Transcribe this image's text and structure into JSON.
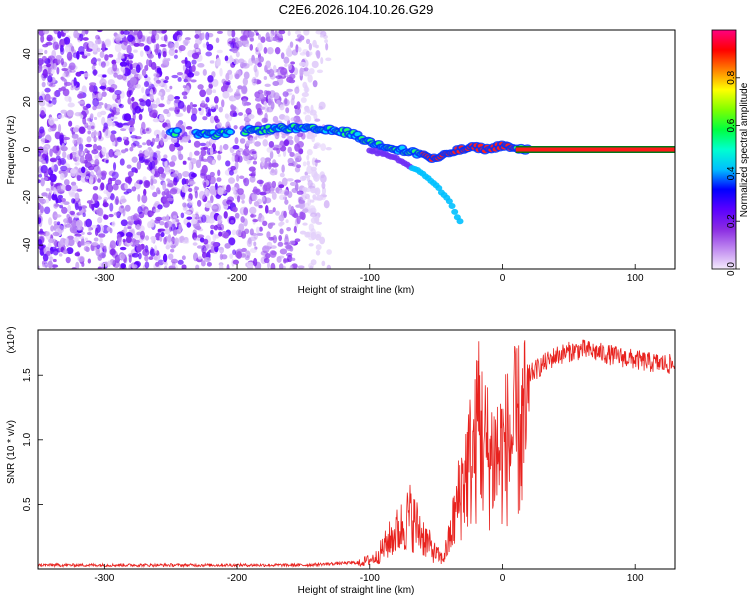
{
  "title": "C2E6.2026.104.10.26.G29",
  "chart_data": [
    {
      "type": "heatmap",
      "name": "spectrogram",
      "xlabel": "Height of straight line (km)",
      "ylabel": "Frequency (Hz)",
      "xlim": [
        -350,
        130
      ],
      "ylim": [
        -50,
        50
      ],
      "xticks": [
        -300,
        -200,
        -100,
        0,
        100
      ],
      "yticks": [
        -40,
        -20,
        0,
        20,
        40
      ],
      "colorbar": {
        "label": "Normalized spectral amplitude",
        "range": [
          0,
          1
        ],
        "ticks": [
          "0.0",
          "0.2",
          "0.4",
          "0.6",
          "0.8"
        ],
        "tick_values": [
          0.0,
          0.2,
          0.4,
          0.6,
          0.8
        ],
        "colors": [
          "#f4eafc",
          "#c08af0",
          "#8a2be2",
          "#5a00ff",
          "#0000ff",
          "#00bfff",
          "#00ffd0",
          "#00ff40",
          "#80ff00",
          "#ffff00",
          "#ff8000",
          "#ff0000",
          "#ff0080"
        ]
      },
      "main_track": {
        "x": [
          -245,
          -220,
          -190,
          -160,
          -130,
          -115,
          -100,
          -85,
          -70,
          -60,
          -52,
          -45,
          -38,
          -30,
          -20,
          -10,
          0,
          5,
          10,
          130
        ],
        "y": [
          7,
          6,
          8,
          9,
          8,
          7,
          3,
          1,
          -1,
          -2,
          -4,
          -3,
          -1,
          0,
          1,
          0,
          2,
          1,
          0,
          0
        ]
      },
      "secondary_track": {
        "x": [
          -100,
          -90,
          -80,
          -70,
          -60,
          -50,
          -40,
          -32
        ],
        "y": [
          0,
          -2,
          -4,
          -7,
          -10,
          -15,
          -22,
          -30
        ]
      }
    },
    {
      "type": "line",
      "name": "snr",
      "xlabel": "Height of straight line (km)",
      "ylabel": "SNR (10 * v/v)",
      "y_multiplier": "(x10⁴)",
      "xlim": [
        -350,
        130
      ],
      "ylim": [
        0,
        1.85
      ],
      "xticks": [
        -300,
        -200,
        -100,
        0,
        100
      ],
      "yticks": [
        0.5,
        1.0,
        1.5
      ],
      "ytick_labels": [
        "0.5",
        "1.0",
        "1.5"
      ],
      "color": "#e8221e",
      "envelope": {
        "x": [
          -350,
          -150,
          -110,
          -95,
          -85,
          -75,
          -70,
          -60,
          -52,
          -45,
          -40,
          -35,
          -30,
          -25,
          -20,
          -18,
          -15,
          -10,
          0,
          10,
          20,
          30,
          40,
          50,
          60,
          70,
          80,
          90,
          100,
          110,
          130
        ],
        "y": [
          0.03,
          0.03,
          0.05,
          0.12,
          0.3,
          0.45,
          0.55,
          0.35,
          0.18,
          0.1,
          0.3,
          0.6,
          0.9,
          1.1,
          1.25,
          1.7,
          1.3,
          1.15,
          1.2,
          1.4,
          1.5,
          1.58,
          1.65,
          1.68,
          1.7,
          1.68,
          1.66,
          1.64,
          1.62,
          1.6,
          1.58
        ]
      }
    }
  ]
}
